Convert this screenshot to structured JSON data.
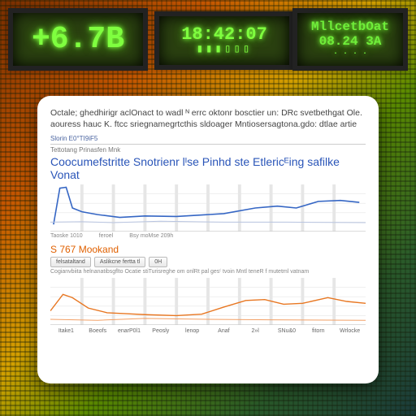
{
  "background": {
    "gradient_colors": [
      "#7a2f00",
      "#c45500",
      "#d4a000",
      "#5a8a00",
      "#2a5a2a",
      "#1a3a3a"
    ]
  },
  "lcd_panels": {
    "a": {
      "text": "+6.7B",
      "bg": "#2a4010",
      "glow": "#7fff3f",
      "fontsize": 38
    },
    "b": {
      "line1": "18:42:07",
      "line2": "▮▮▮▯▯▯",
      "bg": "#2a4010",
      "glow": "#7fff3f"
    },
    "c": {
      "line1": "MllcetbOat",
      "line2": "08.24  3A",
      "line3": "· · · ·"
    }
  },
  "card": {
    "description": "Octale; ghedhirigr aclOnact to wadl ᴺ errc oktonr bosctier un: DRc svetbethgat Ole. aouress hauc K. ftcc  sriegnamegrtcthis sldoager Mntiosersagtona.gdo: dtlae  artie",
    "tab_label": "Slorin  E0°TI9iF5",
    "subtitle": "Tettotang Prinasfen Mnk",
    "chart1_title": "Coocumefstritte Snotrienr lᴵse Pinhd ste Etlericᴱing safilke Vonat",
    "chart1": {
      "type": "line",
      "xlim": [
        0,
        100
      ],
      "ylim": [
        0,
        10
      ],
      "grid_color": "#e6e6e6",
      "background_color": "#ffffff",
      "gridlines_y": [
        2,
        4,
        6,
        8
      ],
      "series": [
        {
          "name": "blue",
          "color": "#3566c4",
          "width": 1.6,
          "points": [
            [
              1,
              1.5
            ],
            [
              3,
              9.2
            ],
            [
              5,
              9.4
            ],
            [
              7,
              5.0
            ],
            [
              10,
              4.2
            ],
            [
              15,
              3.6
            ],
            [
              22,
              3.0
            ],
            [
              30,
              3.3
            ],
            [
              40,
              3.2
            ],
            [
              55,
              3.8
            ],
            [
              65,
              5.0
            ],
            [
              72,
              5.4
            ],
            [
              78,
              5.0
            ],
            [
              85,
              6.4
            ],
            [
              92,
              6.6
            ],
            [
              98,
              6.2
            ]
          ]
        },
        {
          "name": "faint",
          "color": "#b8c4e0",
          "width": 1,
          "points": [
            [
              0,
              2.0
            ],
            [
              10,
              2.1
            ],
            [
              20,
              1.9
            ],
            [
              35,
              2.2
            ],
            [
              55,
              2.0
            ],
            [
              75,
              2.0
            ],
            [
              100,
              1.9
            ]
          ]
        }
      ],
      "x_captions": [
        "Taoske 1010",
        "feroel",
        "Bsy moMse  209h"
      ]
    },
    "section2_label": "S 767 Mookand",
    "buttons": [
      "felsataltand",
      "Aslikcne fertta tl",
      "0H"
    ],
    "small_text": "Cogianvbiita helnanatibsgflto Ocatie stiTurisreghe om onlRt pal ges⁽ tvoin Mntl teneR f mutetml vatnam",
    "chart2": {
      "type": "line",
      "xlim": [
        0,
        100
      ],
      "ylim": [
        0,
        10
      ],
      "grid_color": "#e6e6e6",
      "background_color": "#ffffff",
      "gridlines_y": [
        2,
        4,
        6,
        8
      ],
      "series": [
        {
          "name": "orange",
          "color": "#e87722",
          "width": 1.4,
          "points": [
            [
              0,
              3.0
            ],
            [
              4,
              6.5
            ],
            [
              7,
              5.8
            ],
            [
              12,
              3.6
            ],
            [
              18,
              2.6
            ],
            [
              24,
              2.4
            ],
            [
              30,
              2.2
            ],
            [
              40,
              2.0
            ],
            [
              48,
              2.3
            ],
            [
              55,
              3.8
            ],
            [
              62,
              5.2
            ],
            [
              68,
              5.4
            ],
            [
              74,
              4.4
            ],
            [
              80,
              4.6
            ],
            [
              88,
              5.8
            ],
            [
              94,
              5.0
            ],
            [
              100,
              4.6
            ]
          ]
        },
        {
          "name": "orange2",
          "color": "#f2a066",
          "width": 1,
          "points": [
            [
              0,
              1.2
            ],
            [
              15,
              1.0
            ],
            [
              30,
              1.4
            ],
            [
              50,
              1.2
            ],
            [
              70,
              1.1
            ],
            [
              100,
              1.0
            ]
          ]
        }
      ],
      "x_labels": [
        "Itake1",
        "Bᴏeofs",
        "enarP0l1",
        "Peosly",
        "lenop",
        "Anaf",
        "2»l",
        "SNu&0",
        "fitorn",
        "Wrlocke"
      ]
    }
  },
  "styling": {
    "card_radius": 16,
    "title_color": "#2a55b8",
    "accent_color": "#e06000",
    "orange_series": "#e87722",
    "blue_series": "#3566c4"
  }
}
